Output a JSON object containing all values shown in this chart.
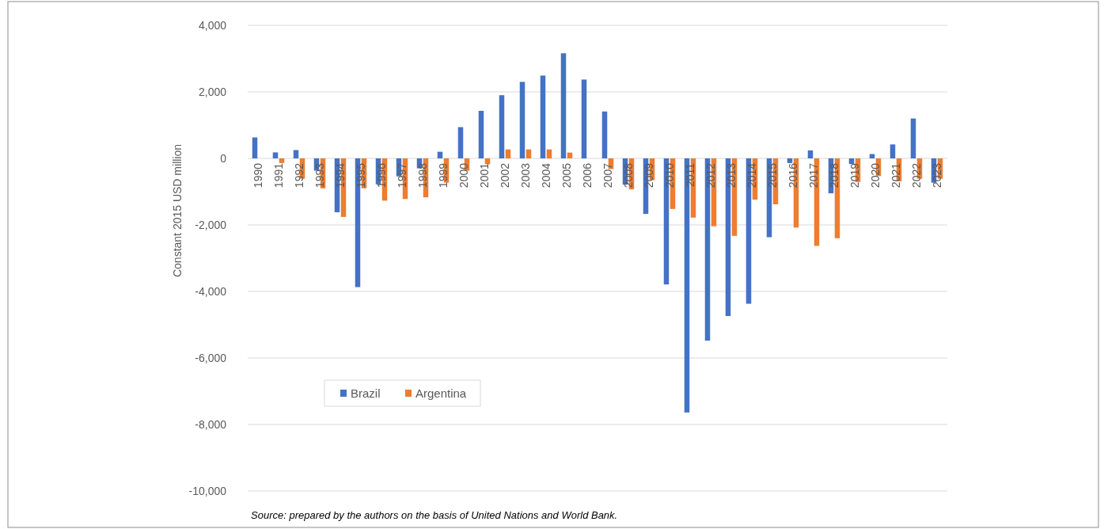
{
  "chart_data": {
    "type": "bar",
    "ylabel": "Constant 2015 USD million",
    "categories": [
      "1990",
      "1991",
      "1992",
      "1993",
      "1994",
      "1995",
      "1996",
      "1997",
      "1998",
      "1999",
      "2000",
      "2001",
      "2002",
      "2003",
      "2004",
      "2005",
      "2006",
      "2007",
      "2008",
      "2009",
      "2010",
      "2011",
      "2012",
      "2013",
      "2014",
      "2015",
      "2016",
      "2017",
      "2018",
      "2019",
      "2020",
      "2021",
      "2022",
      "2023"
    ],
    "series": [
      {
        "name": "Brazil",
        "color": "#4472c4",
        "values": [
          630,
          180,
          250,
          -370,
          -1620,
          -3870,
          -780,
          -540,
          -300,
          200,
          940,
          1430,
          1900,
          2300,
          2490,
          3160,
          2370,
          1410,
          -790,
          -1670,
          -3790,
          -7640,
          -5480,
          -4740,
          -4370,
          -2370,
          -140,
          240,
          -1050,
          -170,
          130,
          420,
          1200,
          -730
        ]
      },
      {
        "name": "Argentina",
        "color": "#ed7d31",
        "values": [
          0,
          -140,
          -610,
          -900,
          -1760,
          -900,
          -1270,
          -1220,
          -1170,
          -730,
          -370,
          -175,
          270,
          270,
          270,
          175,
          0,
          -320,
          -930,
          -650,
          -1520,
          -1780,
          -2040,
          -2330,
          -1240,
          -1380,
          -2080,
          -2630,
          -2400,
          -710,
          -530,
          -690,
          -610,
          -610
        ]
      }
    ],
    "ylim": [
      -10000,
      4000
    ],
    "yticks": [
      {
        "value": -10000,
        "label": "-10,000"
      },
      {
        "value": -8000,
        "label": "-8,000"
      },
      {
        "value": -6000,
        "label": "-6,000"
      },
      {
        "value": -4000,
        "label": "-4,000"
      },
      {
        "value": -2000,
        "label": "-2,000"
      },
      {
        "value": 0,
        "label": "0"
      },
      {
        "value": 2000,
        "label": "2,000"
      },
      {
        "value": 4000,
        "label": "4,000"
      }
    ],
    "grid": "y",
    "legend": "bottom left",
    "annotations": [
      "Source: prepared by the authors on the basis of United Nations and World Bank."
    ]
  }
}
